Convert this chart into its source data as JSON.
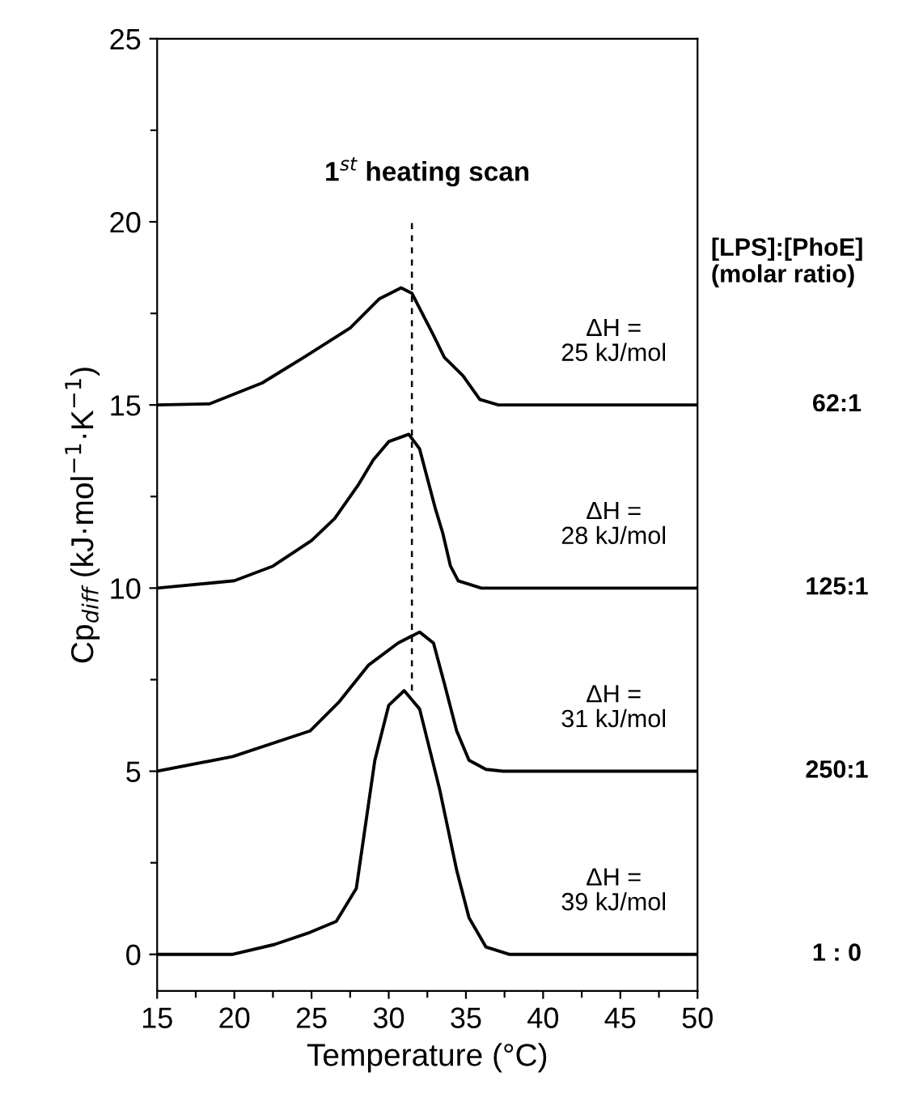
{
  "chart_data": {
    "type": "line",
    "xlabel": "Temperature (°C)",
    "ylabel": "Cp$_{diff}$ (kJ·mol$^{−1}$·K$^{−1}$)",
    "legend_title": "[LPS]:[PhoE]\n(molar ratio)",
    "xlim": [
      15,
      50
    ],
    "ylim": [
      -1,
      25
    ],
    "xticks": [
      15,
      {
        "value": 17.5,
        "label": null
      },
      20,
      {
        "value": 22.5,
        "label": null
      },
      25,
      {
        "value": 27.5,
        "label": null
      },
      30,
      {
        "value": 32.5,
        "label": null
      },
      35,
      {
        "value": 37.5,
        "label": null
      },
      40,
      {
        "value": 42.5,
        "label": null
      },
      45,
      {
        "value": 47.5,
        "label": null
      },
      50
    ],
    "yticks": [
      0,
      {
        "value": 2.5,
        "label": null
      },
      5,
      {
        "value": 7.5,
        "label": null
      },
      10,
      {
        "value": 12.5,
        "label": null
      },
      15,
      {
        "value": 17.5,
        "label": null
      },
      20,
      {
        "value": 22.5,
        "label": null
      },
      25
    ],
    "grid": false,
    "marker": "none",
    "line_style": "solid",
    "annotations": [
      "1$^{st}$ heating scan",
      "ΔH =\n25 kJ/mol",
      "ΔH =\n28 kJ/mol",
      "ΔH =\n31 kJ/mol",
      "ΔH =\n39 kJ/mol"
    ],
    "series": [
      {
        "name": "62:1",
        "color": "#000000",
        "x": [
          15,
          18.4,
          21.8,
          24.5,
          27.5,
          29.4,
          30.8,
          31.5,
          32.9,
          33.6,
          34.8,
          35.9,
          37.1,
          50
        ],
        "values": [
          15,
          15.03,
          15.6,
          16.3,
          17.1,
          17.9,
          18.2,
          18.05,
          16.9,
          16.3,
          15.8,
          15.15,
          15,
          15
        ]
      },
      {
        "name": "125:1",
        "color": "#000000",
        "x": [
          15,
          20,
          22.5,
          25,
          26.5,
          28,
          29,
          30,
          31.3,
          32,
          33,
          33.5,
          34,
          34.5,
          36,
          50
        ],
        "values": [
          10,
          10.2,
          10.6,
          11.3,
          11.9,
          12.8,
          13.5,
          14,
          14.2,
          13.8,
          12.2,
          11.5,
          10.6,
          10.2,
          10,
          10
        ]
      },
      {
        "name": "250:1",
        "color": "#000000",
        "x": [
          15,
          19.9,
          24.9,
          26.8,
          28.7,
          30.6,
          32,
          32.9,
          33.6,
          34.4,
          35.2,
          36.3,
          37.4,
          50
        ],
        "values": [
          5,
          5.4,
          6.1,
          6.9,
          7.9,
          8.5,
          8.8,
          8.5,
          7.4,
          6.1,
          5.3,
          5.05,
          5,
          5
        ]
      },
      {
        "name": "1 : 0",
        "color": "#000000",
        "x": [
          15,
          19.9,
          22.6,
          24.9,
          26.6,
          27.9,
          29.1,
          30,
          31,
          32,
          33.3,
          34.4,
          35.2,
          36.3,
          37.8,
          50
        ],
        "values": [
          0,
          0,
          0.27,
          0.6,
          0.9,
          1.8,
          5.3,
          6.8,
          7.2,
          6.7,
          4.5,
          2.3,
          1,
          0.2,
          0,
          0
        ]
      },
      {
        "color": "#000000",
        "x": [
          31.5,
          31.5
        ],
        "values": [
          7.2,
          20
        ],
        "line_style": "dashed"
      }
    ]
  }
}
